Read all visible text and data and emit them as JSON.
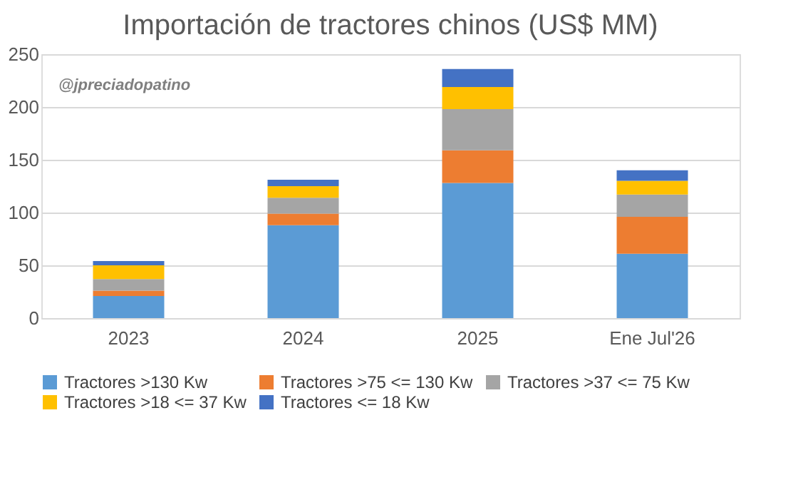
{
  "chart_data": {
    "type": "bar",
    "stacked": true,
    "title": "Importación de tractores chinos (US$ MM)",
    "categories": [
      "2023",
      "2024",
      "2025",
      "Ene  Jul'26"
    ],
    "series": [
      {
        "name": "Tractores >130 Kw",
        "color": "#5b9bd5",
        "values": [
          21,
          88,
          128,
          61
        ]
      },
      {
        "name": "Tractores >75 <= 130 Kw",
        "color": "#ed7d31",
        "values": [
          5,
          11,
          31,
          35
        ]
      },
      {
        "name": "Tractores >37 <= 75 Kw",
        "color": "#a5a5a5",
        "values": [
          11,
          15,
          39,
          21
        ]
      },
      {
        "name": "Tractores >18 <= 37 Kw",
        "color": "#ffc000",
        "values": [
          13,
          11,
          21,
          13
        ]
      },
      {
        "name": "Tractores  <= 18 Kw",
        "color": "#4472c4",
        "values": [
          4,
          6,
          17,
          10
        ]
      }
    ],
    "ylim": [
      0,
      250
    ],
    "yticks": [
      0,
      50,
      100,
      150,
      200,
      250
    ],
    "grid": "y",
    "legend": "bottom",
    "annotations": [
      "@jpreciadopatino"
    ]
  }
}
